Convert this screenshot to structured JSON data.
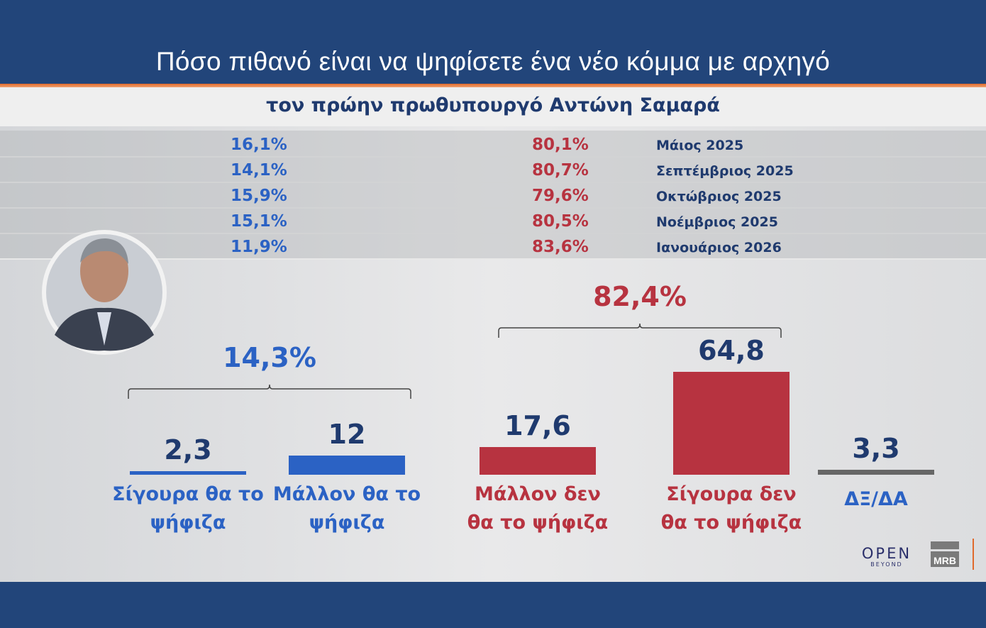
{
  "header": {
    "title": "Πόσο πιθανό είναι να ψηφίσετε ένα νέο κόμμα με αρχηγό",
    "subtitle": "τον πρώην πρωθυπουργό Αντώνη Σαμαρά"
  },
  "history": [
    {
      "yes": "16,1%",
      "no": "80,1%",
      "month": "Μάιος 2025"
    },
    {
      "yes": "14,1%",
      "no": "80,7%",
      "month": "Σεπτέμβριος 2025"
    },
    {
      "yes": "15,9%",
      "no": "79,6%",
      "month": "Οκτώβριος 2025"
    },
    {
      "yes": "15,1%",
      "no": "80,5%",
      "month": "Νοέμβριος 2025"
    },
    {
      "yes": "11,9%",
      "no": "83,6%",
      "month": "Ιανουάριος 2026"
    }
  ],
  "chart_data": {
    "type": "bar",
    "title": "Πόσο πιθανό είναι να ψηφίσετε ένα νέο κόμμα με αρχηγό τον πρώην πρωθυπουργό Αντώνη Σαμαρά",
    "categories": [
      "Σίγουρα θα το ψήφιζα",
      "Μάλλον θα το ψήφιζα",
      "Μάλλον δεν θα το ψήφιζα",
      "Σίγουρα δεν θα το ψήφιζα",
      "ΔΞ/ΔΑ"
    ],
    "category_lines": [
      [
        "Σίγουρα θα το",
        "ψήφιζα"
      ],
      [
        "Μάλλον θα το",
        "ψήφιζα"
      ],
      [
        "Μάλλον δεν",
        "θα το ψήφιζα"
      ],
      [
        "Σίγουρα δεν",
        "θα το ψήφιζα"
      ],
      [
        "ΔΞ/ΔΑ",
        ""
      ]
    ],
    "values": [
      2.3,
      12,
      17.6,
      64.8,
      3.3
    ],
    "value_labels": [
      "2,3",
      "12",
      "17,6",
      "64,8",
      "3,3"
    ],
    "colors": [
      "#2b62c4",
      "#2b62c4",
      "#b73340",
      "#b73340",
      "#666666"
    ],
    "label_colors": [
      "#2b62c4",
      "#2b62c4",
      "#b73340",
      "#b73340",
      "#2b62c4"
    ],
    "groups": [
      {
        "label": "14,3%",
        "color": "#2b62c4"
      },
      {
        "label": "82,4%",
        "color": "#b73340"
      }
    ],
    "ylim": [
      0,
      70
    ]
  },
  "branding": {
    "logo1": "OPEN",
    "logo1_sub": "BEYOND",
    "logo2": "MRB"
  }
}
